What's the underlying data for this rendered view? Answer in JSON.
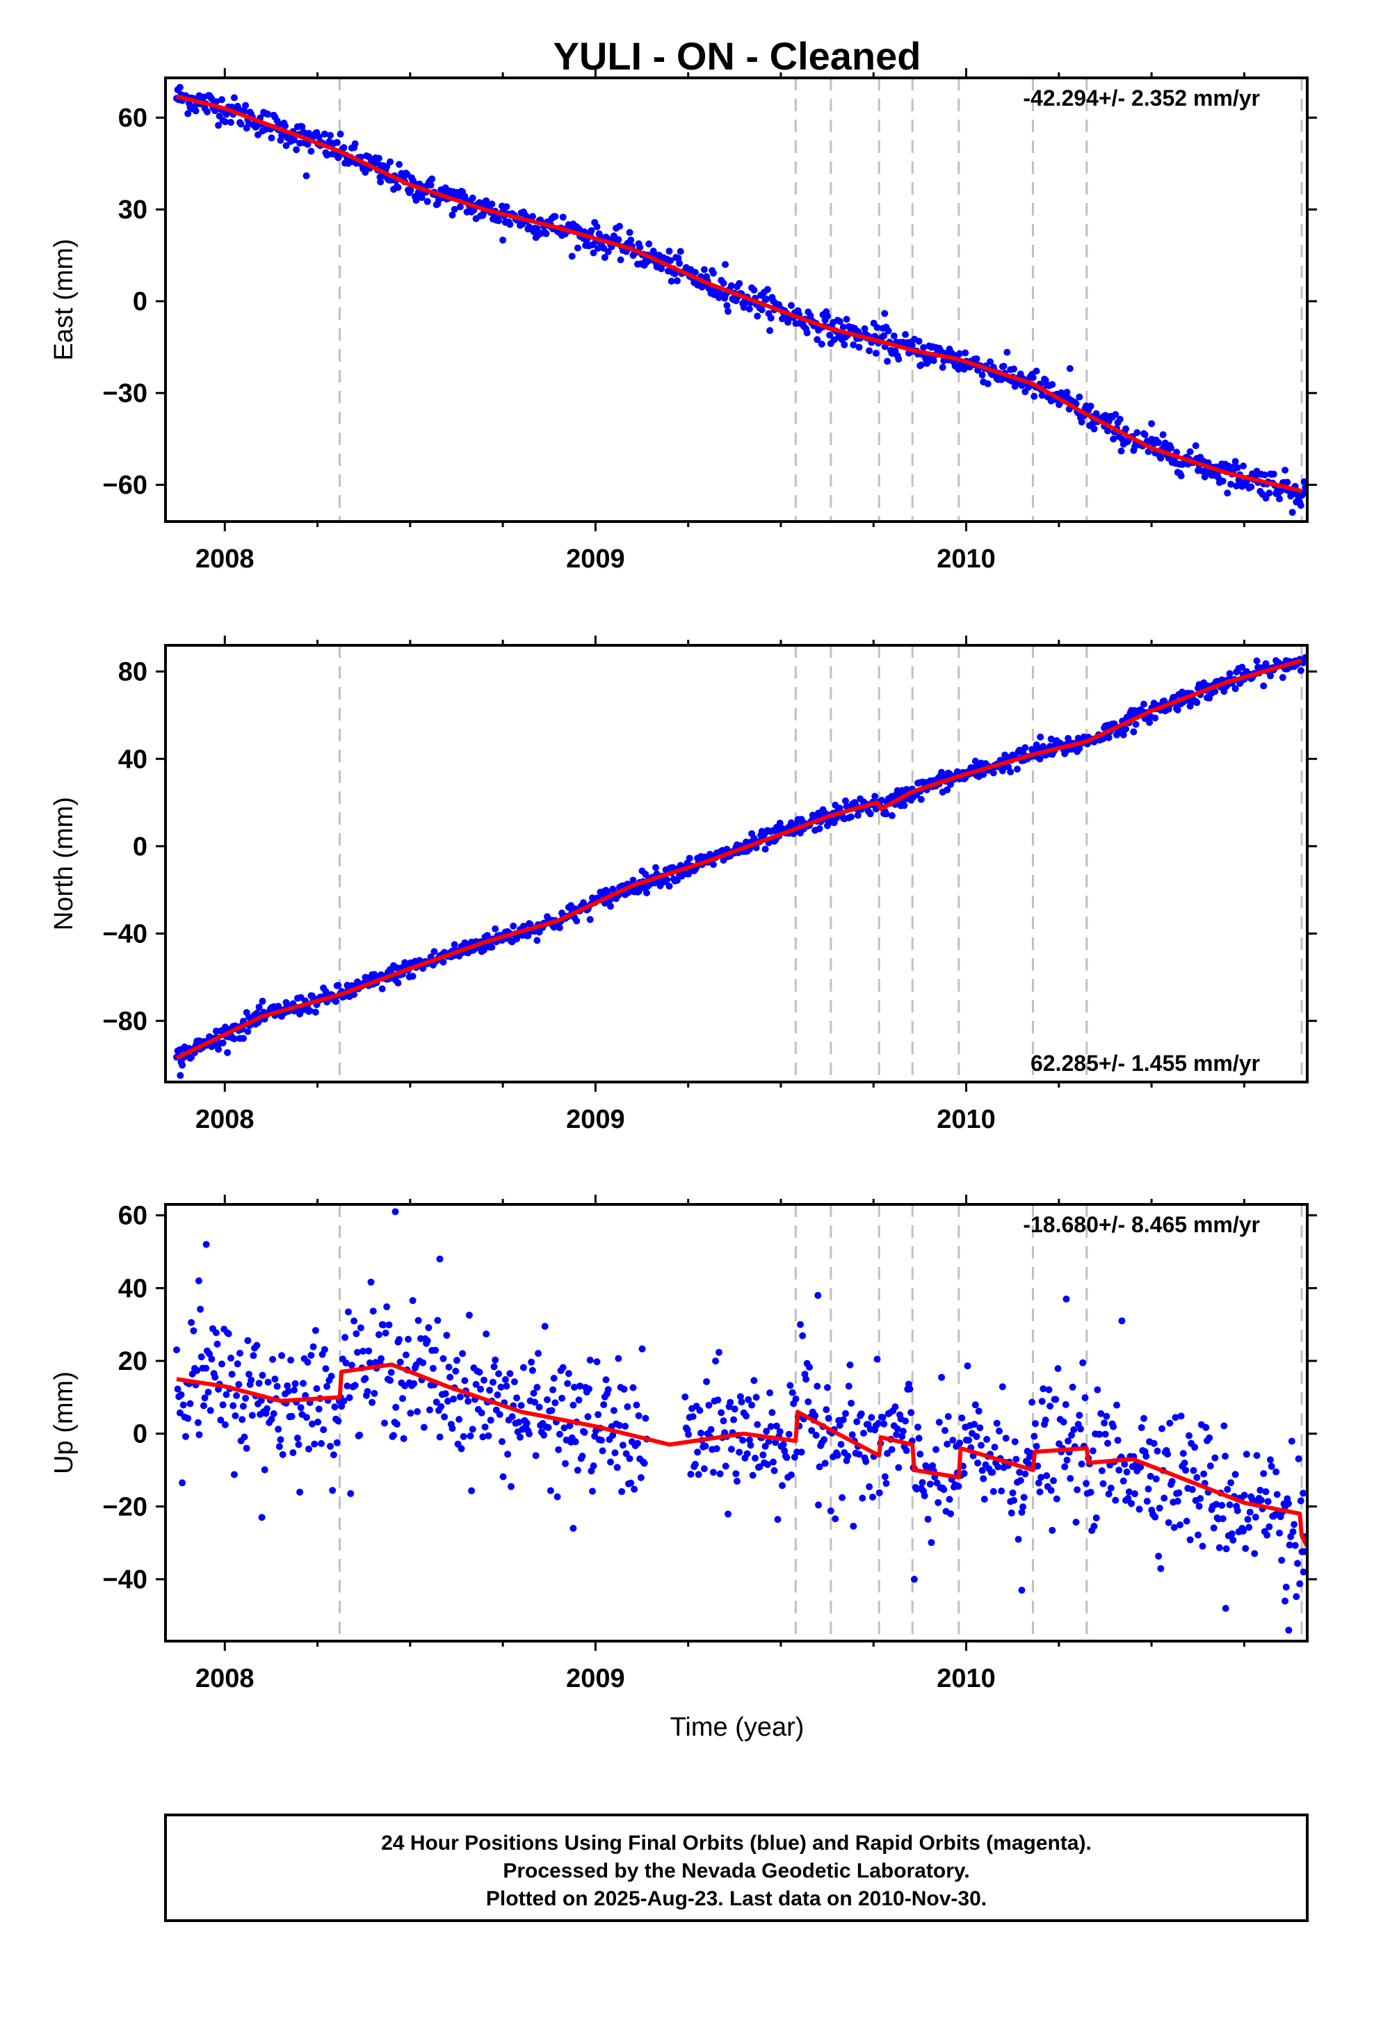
{
  "chart_data": {
    "type": "scatter",
    "title": "YULI  - ON - Cleaned",
    "xlabel": "Time (year)",
    "xlim": [
      2007.84,
      2010.92
    ],
    "x_major_ticks": [
      2008,
      2009,
      2010
    ],
    "x_tick_labels": [
      "2008",
      "2009",
      "2010"
    ],
    "vertical_dashed_lines": [
      2008.31,
      2009.54,
      2009.635,
      2009.765,
      2009.855,
      2009.98,
      2010.18,
      2010.325,
      2010.905
    ],
    "colors": {
      "points": "#0000ff",
      "fit": "#ff0000",
      "dashed": "#c0c0c0"
    },
    "panels": [
      {
        "name": "east",
        "ylabel": "East (mm)",
        "ylim": [
          -72,
          73
        ],
        "y_ticks": [
          60,
          30,
          0,
          -30,
          -60
        ],
        "y_tick_labels": [
          "60",
          "30",
          "0",
          "−30",
          "−60"
        ],
        "rate_label": "-42.294+/- 2.352 mm/yr",
        "rate_position": "top-right",
        "noise": 2.3,
        "fit_x": [
          2007.87,
          2008.0,
          2008.31,
          2008.5,
          2008.7,
          2008.9,
          2009.1,
          2009.3,
          2009.54,
          2009.635,
          2009.765,
          2009.855,
          2009.98,
          2010.18,
          2010.325,
          2010.5,
          2010.7,
          2010.905
        ],
        "fit_y": [
          67,
          63,
          49,
          38,
          30,
          24,
          17,
          6,
          -5,
          -9,
          -13,
          -16,
          -19,
          -27,
          -37,
          -48,
          -56,
          -62
        ],
        "outliers": [
          [
            2008.22,
            41
          ],
          [
            2008.42,
            39
          ],
          [
            2008.75,
            20
          ],
          [
            2009.78,
            -4
          ],
          [
            2010.28,
            -22
          ],
          [
            2010.5,
            -40
          ],
          [
            2010.88,
            -69
          ],
          [
            2009.35,
            12
          ]
        ]
      },
      {
        "name": "north",
        "ylabel": "North (mm)",
        "ylim": [
          -108,
          92
        ],
        "y_ticks": [
          80,
          40,
          0,
          -40,
          -80
        ],
        "y_tick_labels": [
          "80",
          "40",
          "0",
          "−40",
          "−80"
        ],
        "rate_label": "62.285+/- 1.455 mm/yr",
        "rate_position": "bottom-right",
        "noise": 2.2,
        "fit_x": [
          2007.87,
          2008.1,
          2008.31,
          2008.5,
          2008.7,
          2008.9,
          2009.1,
          2009.3,
          2009.54,
          2009.635,
          2009.76,
          2009.77,
          2009.855,
          2009.98,
          2010.18,
          2010.325,
          2010.5,
          2010.7,
          2010.905
        ],
        "fit_y": [
          -97,
          -78,
          -68,
          -56,
          -44,
          -34,
          -18,
          -7,
          8,
          14,
          20,
          17,
          25,
          32,
          42,
          48,
          62,
          75,
          85
        ],
        "outliers": [
          [
            2007.88,
            -105
          ],
          [
            2008.05,
            -88
          ],
          [
            2009.8,
            14
          ],
          [
            2010.2,
            50
          ],
          [
            2010.65,
            68
          ]
        ]
      },
      {
        "name": "up",
        "ylabel": "Up (mm)",
        "ylim": [
          -57,
          63
        ],
        "y_ticks": [
          60,
          40,
          20,
          0,
          -20,
          -40
        ],
        "y_tick_labels": [
          "60",
          "40",
          "20",
          "0",
          "−20",
          "−40"
        ],
        "rate_label": "-18.680+/- 8.465 mm/yr",
        "rate_position": "top-right",
        "noise": 9,
        "gap": [
          2009.14,
          2009.24
        ],
        "fit_x": [
          2007.87,
          2008.0,
          2008.15,
          2008.31,
          2008.315,
          2008.45,
          2008.6,
          2008.8,
          2009.0,
          2009.2,
          2009.4,
          2009.54,
          2009.545,
          2009.635,
          2009.765,
          2009.77,
          2009.855,
          2009.86,
          2009.98,
          2009.985,
          2010.18,
          2010.185,
          2010.325,
          2010.33,
          2010.45,
          2010.6,
          2010.75,
          2010.9,
          2010.905,
          2010.92
        ],
        "fit_y": [
          15,
          13,
          9,
          10,
          17,
          19,
          13,
          6,
          2,
          -3,
          0,
          -2,
          6,
          1,
          -6,
          -1,
          -3,
          -10,
          -12,
          -4,
          -10,
          -5,
          -4,
          -8,
          -7,
          -13,
          -19,
          -22,
          -28,
          -31
        ],
        "outliers": [
          [
            2007.95,
            52
          ],
          [
            2007.93,
            42
          ],
          [
            2008.46,
            61
          ],
          [
            2008.58,
            48
          ],
          [
            2008.1,
            -23
          ],
          [
            2008.94,
            -26
          ],
          [
            2009.6,
            38
          ],
          [
            2009.86,
            -40
          ],
          [
            2010.15,
            -43
          ],
          [
            2010.27,
            37
          ],
          [
            2010.42,
            31
          ],
          [
            2010.7,
            -48
          ],
          [
            2010.87,
            -54
          ],
          [
            2010.86,
            -46
          ],
          [
            2010.91,
            -38
          ]
        ]
      }
    ]
  },
  "footer": {
    "line1": "24 Hour Positions Using Final Orbits (blue) and Rapid Orbits (magenta).",
    "line2": "Processed by the Nevada Geodetic Laboratory.",
    "line3": "Plotted on 2025-Aug-23. Last data on 2010-Nov-30."
  }
}
